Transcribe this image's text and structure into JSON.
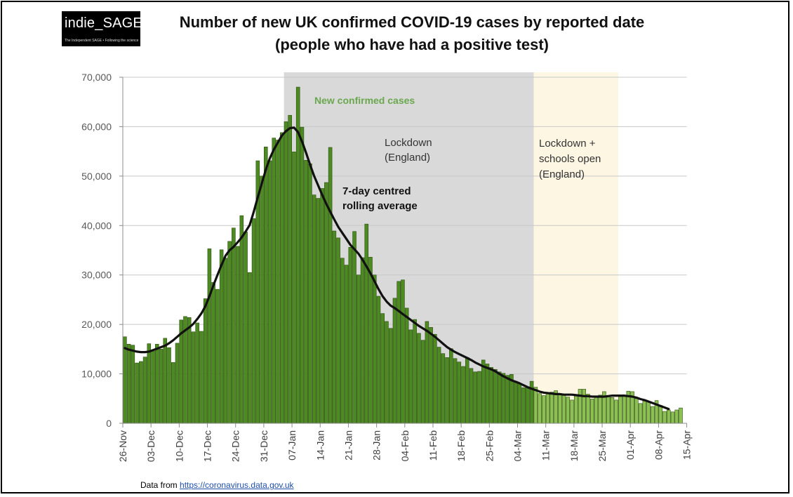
{
  "header": {
    "logo_text": "indie_SAGE",
    "logo_tagline": "The Independent SAGE • Following the science",
    "title_line1": "Number of new UK confirmed COVID-19 cases by reported date",
    "title_line2": "(people who have had a positive test)"
  },
  "footer": {
    "source_prefix": "Data from ",
    "source_link": "https://coronavirus.data.gov.uk"
  },
  "colors": {
    "bar_dark": "#4e8a22",
    "bar_light": "#8dc052",
    "bar_edge": "#2c4d12",
    "rolling_line": "#111111",
    "lockdown_band": "#d9d9d9",
    "schools_band": "#fdf6e3",
    "series_label": "#6aa84f"
  },
  "chart_data": {
    "type": "bar",
    "x_start": "2020-11-26",
    "x_ticks": [
      "26-Nov",
      "03-Dec",
      "10-Dec",
      "17-Dec",
      "24-Dec",
      "31-Dec",
      "07-Jan",
      "14-Jan",
      "21-Jan",
      "28-Jan",
      "04-Feb",
      "11-Feb",
      "18-Feb",
      "25-Feb",
      "04-Mar",
      "11-Mar",
      "18-Mar",
      "25-Mar",
      "01-Apr",
      "08-Apr",
      "15-Apr"
    ],
    "y_ticks": [
      "0",
      "10,000",
      "20,000",
      "30,000",
      "40,000",
      "50,000",
      "60,000",
      "70,000"
    ],
    "ylim": [
      0,
      70000
    ],
    "grid": true,
    "series": [
      {
        "name": "New confirmed cases",
        "type": "bar",
        "values": [
          17500,
          16000,
          15800,
          12200,
          12500,
          13400,
          16100,
          14600,
          16000,
          15000,
          17200,
          15300,
          12300,
          16200,
          20900,
          21600,
          21400,
          18500,
          20300,
          18600,
          25200,
          35300,
          28500,
          27100,
          35100,
          33400,
          36800,
          39500,
          35800,
          42000,
          38700,
          30500,
          41400,
          53100,
          50000,
          55900,
          53100,
          57700,
          57300,
          58800,
          61000,
          62300,
          54900,
          68000,
          59900,
          53200,
          52500,
          46200,
          45500,
          47500,
          48700,
          55800,
          38900,
          37500,
          33400,
          32000,
          35600,
          38800,
          30000,
          33500,
          40300,
          33600,
          30000,
          25700,
          22200,
          20600,
          19200,
          25300,
          28700,
          29000,
          23300,
          18900,
          21000,
          18200,
          16800,
          20600,
          19400,
          18000,
          15400,
          14100,
          13300,
          15100,
          13100,
          12400,
          11500,
          13300,
          11100,
          10400,
          10500,
          12800,
          12000,
          11300,
          10900,
          10400,
          10100,
          9700,
          9900,
          8500,
          8000,
          7200,
          7400,
          8500,
          7300,
          6000,
          5600,
          6000,
          6300,
          6600,
          5900,
          5800,
          5300,
          4700,
          5500,
          6900,
          6900,
          5900,
          4900,
          5400,
          5700,
          6400,
          5400,
          5200,
          4700,
          5400,
          5600,
          6500,
          6400,
          5000,
          4000,
          4500,
          4400,
          3400,
          4600,
          3600,
          2400,
          2700,
          2300,
          2700,
          3100
        ]
      },
      {
        "type": "line",
        "values": [
          15200,
          14900,
          14700,
          14500,
          14400,
          14400,
          14500,
          14800,
          15100,
          15400,
          15700,
          16200,
          16800,
          17500,
          18200,
          18800,
          19400,
          20100,
          21100,
          22200,
          23700,
          25700,
          27900,
          30000,
          32000,
          33900,
          35000,
          35700,
          36600,
          37600,
          38800,
          40100,
          42800,
          45700,
          48500,
          51300,
          53600,
          55400,
          56800,
          58200,
          59100,
          59700,
          59800,
          58900,
          57000,
          54700,
          52300,
          50000,
          48100,
          46200,
          44400,
          42800,
          41200,
          39700,
          38500,
          37300,
          36100,
          35200,
          34300,
          33100,
          31700,
          30300,
          28700,
          27100,
          25700,
          24600,
          23800,
          23300,
          22700,
          22100,
          21500,
          20900,
          20300,
          19700,
          19200,
          18700,
          18100,
          17500,
          16800,
          16100,
          15400,
          14900,
          14400,
          14000,
          13600,
          13200,
          12800,
          12300,
          11900,
          11500,
          11200,
          10900,
          10500,
          10000,
          9500,
          9100,
          8700,
          8400,
          8100,
          7700,
          7300,
          7000,
          6700,
          6400,
          6200,
          6100,
          6000,
          5900,
          5900,
          5800,
          5800,
          5800,
          5700,
          5600,
          5500,
          5500,
          5400,
          5400,
          5400,
          5400,
          5500,
          5600,
          5600,
          5600,
          5600,
          5500,
          5400,
          5200,
          4900,
          4700,
          4400,
          4100,
          3800,
          3500,
          3200,
          2900
        ]
      }
    ],
    "annotations": {
      "series_label": "New confirmed cases",
      "rolling_label_1": "7-day centred",
      "rolling_label_2": "rolling average",
      "lockdown_1": "Lockdown",
      "lockdown_2": "(England)",
      "schools_1": "Lockdown +",
      "schools_2": "schools open",
      "schools_3": "(England)"
    },
    "shaded_regions": [
      {
        "from_date": "2021-01-05",
        "to_date": "2021-03-08"
      },
      {
        "from_date": "2021-03-08",
        "to_date": "2021-03-29"
      }
    ]
  }
}
